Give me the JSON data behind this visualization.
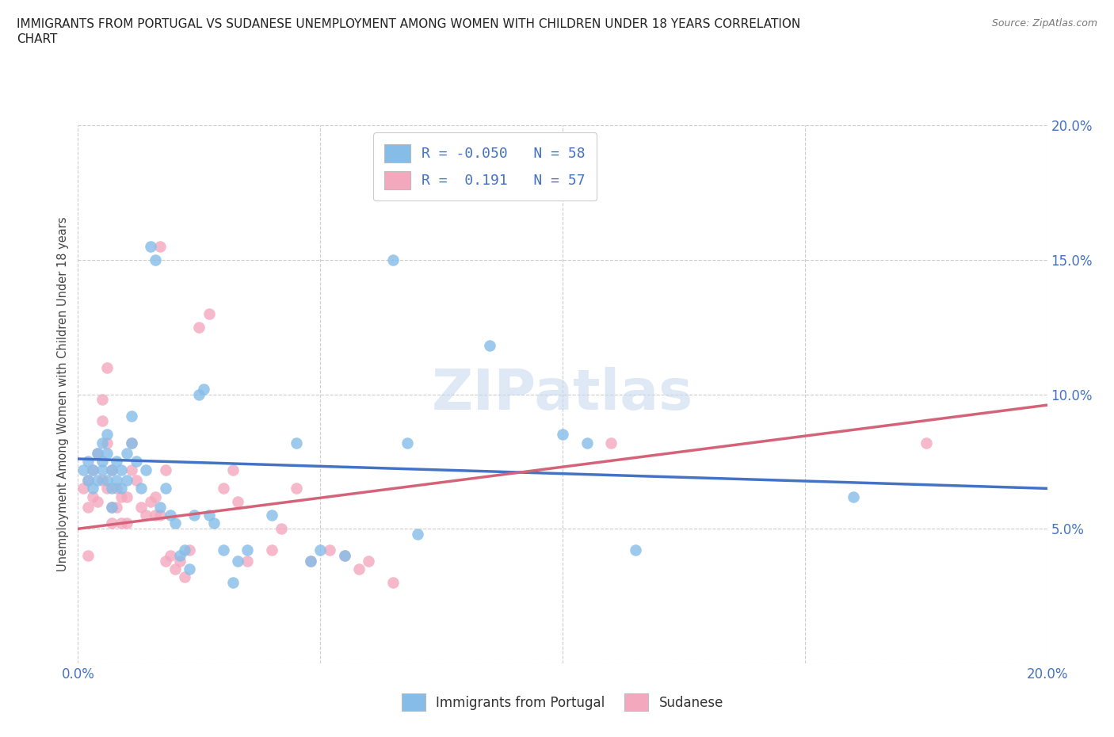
{
  "title": "IMMIGRANTS FROM PORTUGAL VS SUDANESE UNEMPLOYMENT AMONG WOMEN WITH CHILDREN UNDER 18 YEARS CORRELATION\nCHART",
  "source": "Source: ZipAtlas.com",
  "ylabel": "Unemployment Among Women with Children Under 18 years",
  "watermark": "ZIPatlas",
  "blue_color": "#85bde8",
  "pink_color": "#f4a8be",
  "blue_line_color": "#4472c4",
  "pink_line_color": "#d4637a",
  "blue_r": -0.05,
  "blue_n": 58,
  "pink_r": 0.191,
  "pink_n": 57,
  "xlim": [
    0.0,
    0.2
  ],
  "ylim": [
    0.0,
    0.2
  ],
  "blue_line": [
    [
      0.0,
      0.076
    ],
    [
      0.2,
      0.065
    ]
  ],
  "pink_line": [
    [
      0.0,
      0.05
    ],
    [
      0.2,
      0.096
    ]
  ],
  "blue_points": [
    [
      0.001,
      0.072
    ],
    [
      0.002,
      0.068
    ],
    [
      0.002,
      0.075
    ],
    [
      0.003,
      0.065
    ],
    [
      0.003,
      0.072
    ],
    [
      0.004,
      0.078
    ],
    [
      0.004,
      0.068
    ],
    [
      0.005,
      0.075
    ],
    [
      0.005,
      0.082
    ],
    [
      0.005,
      0.072
    ],
    [
      0.006,
      0.068
    ],
    [
      0.006,
      0.078
    ],
    [
      0.006,
      0.085
    ],
    [
      0.007,
      0.072
    ],
    [
      0.007,
      0.065
    ],
    [
      0.007,
      0.058
    ],
    [
      0.008,
      0.075
    ],
    [
      0.008,
      0.068
    ],
    [
      0.009,
      0.072
    ],
    [
      0.009,
      0.065
    ],
    [
      0.01,
      0.078
    ],
    [
      0.01,
      0.068
    ],
    [
      0.011,
      0.092
    ],
    [
      0.011,
      0.082
    ],
    [
      0.012,
      0.075
    ],
    [
      0.013,
      0.065
    ],
    [
      0.014,
      0.072
    ],
    [
      0.015,
      0.155
    ],
    [
      0.016,
      0.15
    ],
    [
      0.017,
      0.058
    ],
    [
      0.018,
      0.065
    ],
    [
      0.019,
      0.055
    ],
    [
      0.02,
      0.052
    ],
    [
      0.021,
      0.04
    ],
    [
      0.022,
      0.042
    ],
    [
      0.023,
      0.035
    ],
    [
      0.024,
      0.055
    ],
    [
      0.025,
      0.1
    ],
    [
      0.026,
      0.102
    ],
    [
      0.027,
      0.055
    ],
    [
      0.028,
      0.052
    ],
    [
      0.03,
      0.042
    ],
    [
      0.032,
      0.03
    ],
    [
      0.033,
      0.038
    ],
    [
      0.035,
      0.042
    ],
    [
      0.04,
      0.055
    ],
    [
      0.045,
      0.082
    ],
    [
      0.048,
      0.038
    ],
    [
      0.05,
      0.042
    ],
    [
      0.055,
      0.04
    ],
    [
      0.065,
      0.15
    ],
    [
      0.068,
      0.082
    ],
    [
      0.07,
      0.048
    ],
    [
      0.085,
      0.118
    ],
    [
      0.1,
      0.085
    ],
    [
      0.105,
      0.082
    ],
    [
      0.115,
      0.042
    ],
    [
      0.16,
      0.062
    ]
  ],
  "pink_points": [
    [
      0.001,
      0.065
    ],
    [
      0.002,
      0.068
    ],
    [
      0.002,
      0.058
    ],
    [
      0.003,
      0.062
    ],
    [
      0.003,
      0.072
    ],
    [
      0.004,
      0.078
    ],
    [
      0.004,
      0.06
    ],
    [
      0.005,
      0.068
    ],
    [
      0.005,
      0.09
    ],
    [
      0.005,
      0.098
    ],
    [
      0.006,
      0.065
    ],
    [
      0.006,
      0.082
    ],
    [
      0.006,
      0.11
    ],
    [
      0.007,
      0.072
    ],
    [
      0.007,
      0.058
    ],
    [
      0.007,
      0.052
    ],
    [
      0.008,
      0.065
    ],
    [
      0.008,
      0.058
    ],
    [
      0.009,
      0.062
    ],
    [
      0.009,
      0.052
    ],
    [
      0.01,
      0.062
    ],
    [
      0.01,
      0.052
    ],
    [
      0.011,
      0.072
    ],
    [
      0.011,
      0.082
    ],
    [
      0.012,
      0.068
    ],
    [
      0.013,
      0.058
    ],
    [
      0.014,
      0.055
    ],
    [
      0.015,
      0.06
    ],
    [
      0.016,
      0.055
    ],
    [
      0.016,
      0.062
    ],
    [
      0.017,
      0.055
    ],
    [
      0.017,
      0.155
    ],
    [
      0.018,
      0.038
    ],
    [
      0.018,
      0.072
    ],
    [
      0.019,
      0.04
    ],
    [
      0.02,
      0.035
    ],
    [
      0.021,
      0.038
    ],
    [
      0.022,
      0.032
    ],
    [
      0.023,
      0.042
    ],
    [
      0.025,
      0.125
    ],
    [
      0.027,
      0.13
    ],
    [
      0.03,
      0.065
    ],
    [
      0.032,
      0.072
    ],
    [
      0.033,
      0.06
    ],
    [
      0.035,
      0.038
    ],
    [
      0.04,
      0.042
    ],
    [
      0.042,
      0.05
    ],
    [
      0.045,
      0.065
    ],
    [
      0.048,
      0.038
    ],
    [
      0.052,
      0.042
    ],
    [
      0.055,
      0.04
    ],
    [
      0.058,
      0.035
    ],
    [
      0.06,
      0.038
    ],
    [
      0.065,
      0.03
    ],
    [
      0.002,
      0.04
    ],
    [
      0.11,
      0.082
    ],
    [
      0.175,
      0.082
    ]
  ]
}
